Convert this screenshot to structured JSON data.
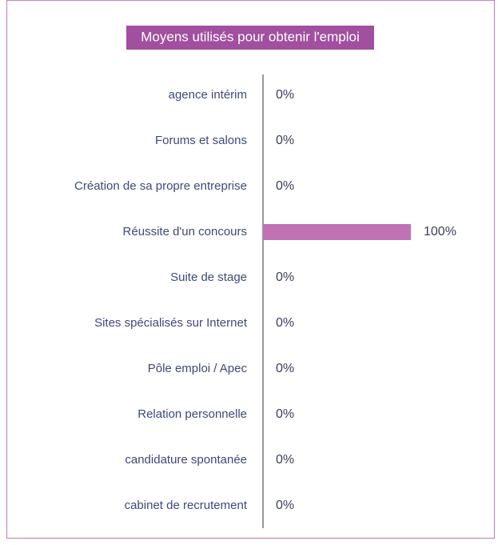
{
  "chart_data": {
    "type": "bar",
    "orientation": "horizontal",
    "title": "Moyens utilisés pour obtenir l'emploi",
    "categories": [
      "agence intérim",
      "Forums et salons",
      "Création de sa propre entreprise",
      "Réussite d'un concours",
      "Suite de stage",
      "Sites spécialisés sur Internet",
      "Pôle emploi / Apec",
      "Relation personnelle",
      "candidature spontanée",
      "cabinet de recrutement"
    ],
    "values": [
      0,
      0,
      0,
      100,
      0,
      0,
      0,
      0,
      0,
      0
    ],
    "value_labels": [
      "0%",
      "0%",
      "0%",
      "100%",
      "0%",
      "0%",
      "0%",
      "0%",
      "0%",
      "0%"
    ],
    "color": "#c072b5",
    "xlim": [
      0,
      100
    ]
  }
}
